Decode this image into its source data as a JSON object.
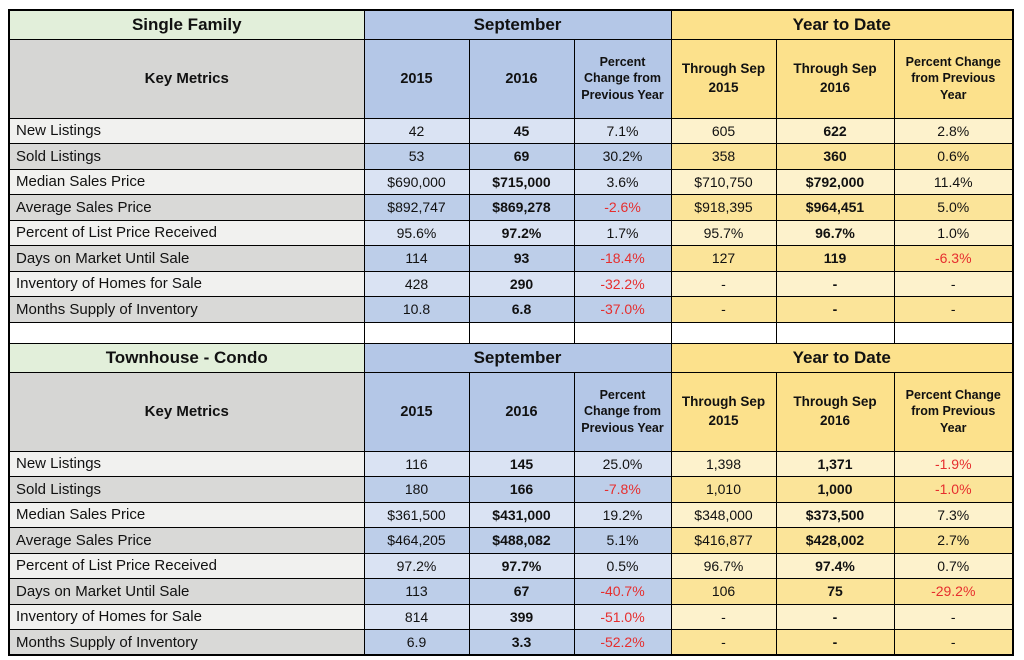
{
  "report": {
    "metrics_header": "Key Metrics",
    "colors": {
      "section_green": "#e2efda",
      "september_blue": "#b4c7e7",
      "ytd_yellow": "#fce18c",
      "metrics_gray": "#d6d6d4",
      "blue_row_light": "#dae3f3",
      "blue_row_dark": "#bdcee9",
      "yellow_row_light": "#fdf2cc",
      "yellow_row_dark": "#fbe499",
      "gray_row_light": "#f1f1ef",
      "gray_row_dark": "#d9d9d7",
      "negative_value_red": "#e62e2e"
    }
  },
  "chart_data": [
    {
      "type": "table",
      "title": "Single Family",
      "column_groups": [
        "September",
        "Year to Date"
      ],
      "columns": [
        "Key Metrics",
        "2015",
        "2016",
        "Percent Change from Previous Year",
        "Through Sep 2015",
        "Through Sep 2016",
        "Percent Change from Previous Year"
      ],
      "rows": [
        [
          "New Listings",
          "42",
          "45",
          "7.1%",
          "605",
          "622",
          "2.8%"
        ],
        [
          "Sold Listings",
          "53",
          "69",
          "30.2%",
          "358",
          "360",
          "0.6%"
        ],
        [
          "Median Sales Price",
          "$690,000",
          "$715,000",
          "3.6%",
          "$710,750",
          "$792,000",
          "11.4%"
        ],
        [
          "Average Sales Price",
          "$892,747",
          "$869,278",
          "-2.6%",
          "$918,395",
          "$964,451",
          "5.0%"
        ],
        [
          "Percent of List Price Received",
          "95.6%",
          "97.2%",
          "1.7%",
          "95.7%",
          "96.7%",
          "1.0%"
        ],
        [
          "Days on Market Until Sale",
          "114",
          "93",
          "-18.4%",
          "127",
          "119",
          "-6.3%"
        ],
        [
          "Inventory of Homes for Sale",
          "428",
          "290",
          "-32.2%",
          "-",
          "-",
          "-"
        ],
        [
          "Months Supply of Inventory",
          "10.8",
          "6.8",
          "-37.0%",
          "-",
          "-",
          "-"
        ]
      ]
    },
    {
      "type": "table",
      "title": "Townhouse - Condo",
      "column_groups": [
        "September",
        "Year to Date"
      ],
      "columns": [
        "Key Metrics",
        "2015",
        "2016",
        "Percent Change from Previous Year",
        "Through Sep 2015",
        "Through Sep 2016",
        "Percent Change from Previous Year"
      ],
      "rows": [
        [
          "New Listings",
          "116",
          "145",
          "25.0%",
          "1,398",
          "1,371",
          "-1.9%"
        ],
        [
          "Sold Listings",
          "180",
          "166",
          "-7.8%",
          "1,010",
          "1,000",
          "-1.0%"
        ],
        [
          "Median Sales Price",
          "$361,500",
          "$431,000",
          "19.2%",
          "$348,000",
          "$373,500",
          "7.3%"
        ],
        [
          "Average Sales Price",
          "$464,205",
          "$488,082",
          "5.1%",
          "$416,877",
          "$428,002",
          "2.7%"
        ],
        [
          "Percent of List Price Received",
          "97.2%",
          "97.7%",
          "0.5%",
          "96.7%",
          "97.4%",
          "0.7%"
        ],
        [
          "Days on Market Until Sale",
          "113",
          "67",
          "-40.7%",
          "106",
          "75",
          "-29.2%"
        ],
        [
          "Inventory of Homes for Sale",
          "814",
          "399",
          "-51.0%",
          "-",
          "-",
          "-"
        ],
        [
          "Months Supply of Inventory",
          "6.9",
          "3.3",
          "-52.2%",
          "-",
          "-",
          "-"
        ]
      ]
    }
  ]
}
